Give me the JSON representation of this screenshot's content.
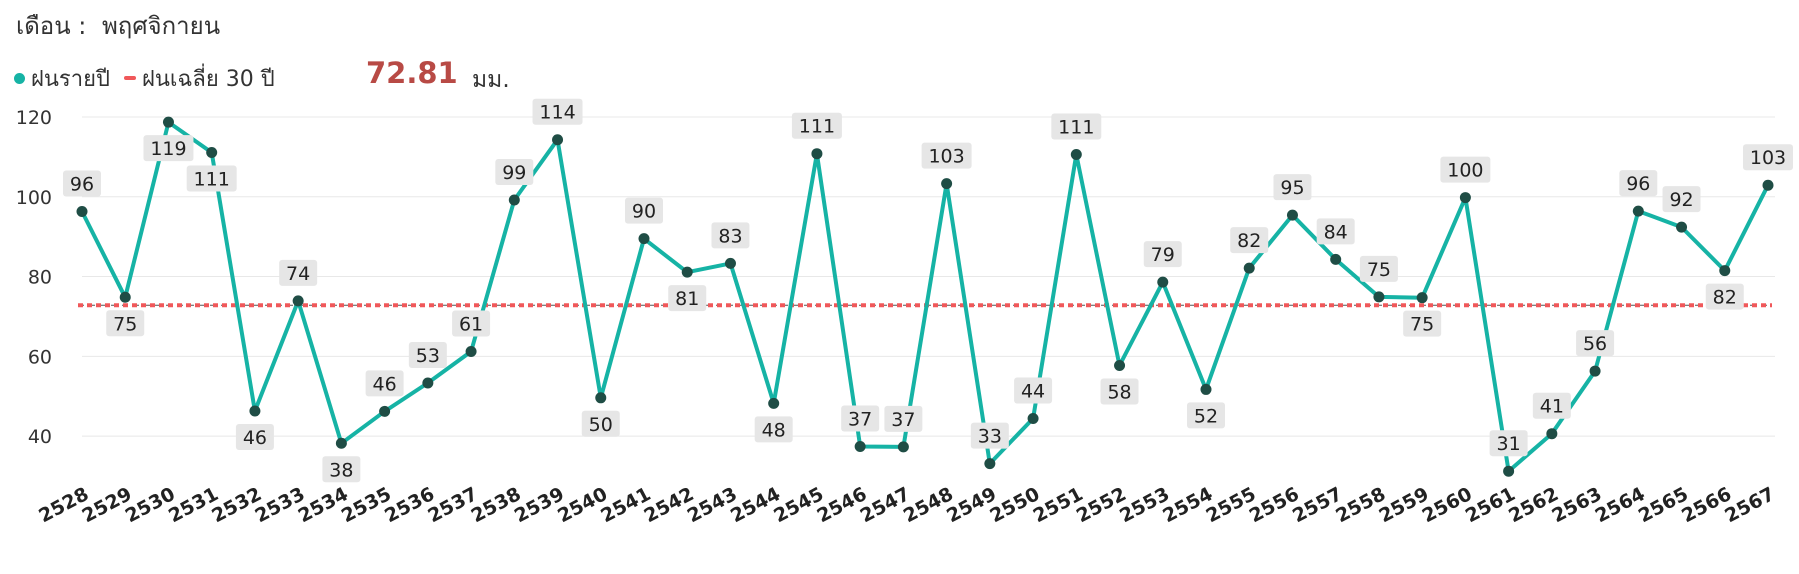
{
  "header": {
    "month_label": "เดือน :",
    "month_value": "พฤศจิกายน"
  },
  "legend": {
    "annual_label": "ฝนรายปี",
    "avg_label": "ฝนเฉลี่ย 30 ปี",
    "avg_value": "72.81",
    "unit": "มม."
  },
  "colors": {
    "line": "#16b3a5",
    "point": "#1f4d45",
    "average": "#f0585a",
    "avg_value": "#b84a45",
    "label_bg": "#e6e6e6"
  },
  "chart_data": {
    "type": "line",
    "x": [
      "2528",
      "2529",
      "2530",
      "2531",
      "2532",
      "2533",
      "2534",
      "2535",
      "2536",
      "2537",
      "2538",
      "2539",
      "2540",
      "2541",
      "2542",
      "2543",
      "2544",
      "2545",
      "2546",
      "2547",
      "2548",
      "2549",
      "2550",
      "2551",
      "2552",
      "2553",
      "2554",
      "2555",
      "2556",
      "2557",
      "2558",
      "2559",
      "2560",
      "2561",
      "2562",
      "2563",
      "2564",
      "2565",
      "2566",
      "2567"
    ],
    "series": [
      {
        "name": "ฝนรายปี",
        "values": [
          96.3,
          74.8,
          118.7,
          111.1,
          46.3,
          73.9,
          38.2,
          46.2,
          53.3,
          61.2,
          99.2,
          114.3,
          49.6,
          89.5,
          81.1,
          83.3,
          48.2,
          110.8,
          37.4,
          37.3,
          103.3,
          33.1,
          44.4,
          110.6,
          57.7,
          78.6,
          51.7,
          82.1,
          95.4,
          84.3,
          74.9,
          74.7,
          99.8,
          31.2,
          40.6,
          56.3,
          96.4,
          92.4,
          81.5,
          102.9
        ]
      },
      {
        "name": "ฝนเฉลี่ย 30 ปี",
        "value": 72.81
      }
    ],
    "labels": [
      "96",
      "75",
      "119",
      "111",
      "46",
      "74",
      "38",
      "46",
      "53",
      "61",
      "99",
      "114",
      "50",
      "90",
      "81",
      "83",
      "48",
      "111",
      "37",
      "37",
      "103",
      "33",
      "44",
      "111",
      "58",
      "79",
      "52",
      "82",
      "95",
      "84",
      "75",
      "75",
      "100",
      "31",
      "41",
      "56",
      "96",
      "92",
      "82",
      "103"
    ],
    "label_side": [
      "up",
      "down",
      "down",
      "down",
      "down",
      "up",
      "down",
      "up",
      "up",
      "up",
      "up",
      "up",
      "down",
      "up",
      "down",
      "up",
      "down",
      "up",
      "up",
      "up",
      "up",
      "up",
      "up",
      "up",
      "down",
      "up",
      "down",
      "up",
      "up",
      "up",
      "up",
      "down",
      "up",
      "up",
      "up",
      "up",
      "up",
      "up",
      "down",
      "up"
    ],
    "yticks": [
      40,
      60,
      80,
      100,
      120
    ],
    "ylim": [
      32,
      120
    ],
    "grid": true,
    "xlabel": "",
    "ylabel": ""
  }
}
